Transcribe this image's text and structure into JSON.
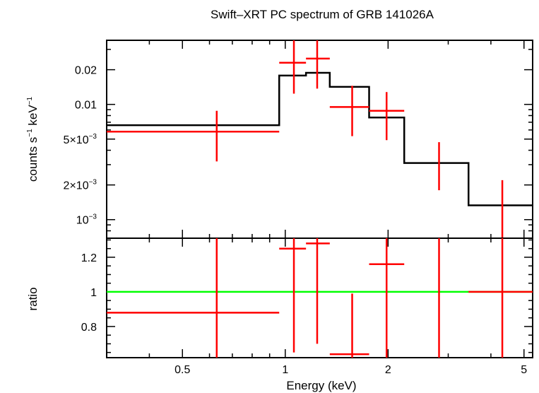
{
  "colors": {
    "model": "#000000",
    "data": "#ff0000",
    "unity": "#00ff00"
  },
  "chart_data": [
    {
      "type": "line",
      "title": "Swift–XRT PC spectrum of GRB 141026A",
      "xlabel": "Energy (keV)",
      "ylabel": "counts s⁻¹ keV⁻¹",
      "xscale": "log",
      "yscale": "log",
      "xlim": [
        0.3,
        5.3
      ],
      "ylim": [
        0.00069,
        0.036
      ],
      "yticks": [
        {
          "v": 0.001,
          "mant": "10",
          "exp": "−3"
        },
        {
          "v": 0.002,
          "mant": "2×10",
          "exp": "−3"
        },
        {
          "v": 0.005,
          "mant": "5×10",
          "exp": "−3"
        },
        {
          "v": 0.01,
          "text": "0.01"
        },
        {
          "v": 0.02,
          "text": "0.02"
        }
      ],
      "data": [
        {
          "x": 0.63,
          "xlo": 0.3,
          "xhi": 0.96,
          "y": 0.0058,
          "ylo": 0.0032,
          "yhi": 0.0088
        },
        {
          "x": 1.06,
          "xlo": 0.96,
          "xhi": 1.15,
          "y": 0.023,
          "ylo": 0.0124,
          "yhi": 0.036
        },
        {
          "x": 1.24,
          "xlo": 1.15,
          "xhi": 1.35,
          "y": 0.025,
          "ylo": 0.0137,
          "yhi": 0.036
        },
        {
          "x": 1.57,
          "xlo": 1.35,
          "xhi": 1.76,
          "y": 0.0095,
          "ylo": 0.0053,
          "yhi": 0.0145
        },
        {
          "x": 1.98,
          "xlo": 1.76,
          "xhi": 2.23,
          "y": 0.0088,
          "ylo": 0.0049,
          "yhi": 0.0128
        },
        {
          "x": 2.82,
          "xlo": 2.82,
          "xhi": 2.82,
          "y": 0.0031,
          "ylo": 0.0018,
          "yhi": 0.0047
        },
        {
          "x": 4.32,
          "xlo": 4.32,
          "xhi": 4.32,
          "y": 0.0009,
          "ylo": 0.00069,
          "yhi": 0.0022
        }
      ],
      "model": [
        {
          "xlo": 0.3,
          "xhi": 0.96,
          "y": 0.0066
        },
        {
          "xlo": 0.96,
          "xhi": 1.15,
          "y": 0.0178
        },
        {
          "xlo": 1.15,
          "xhi": 1.35,
          "y": 0.0188
        },
        {
          "xlo": 1.35,
          "xhi": 1.76,
          "y": 0.0142
        },
        {
          "xlo": 1.76,
          "xhi": 2.23,
          "y": 0.0077
        },
        {
          "xlo": 2.23,
          "xhi": 3.44,
          "y": 0.0031
        },
        {
          "xlo": 3.44,
          "xhi": 5.3,
          "y": 0.00133
        }
      ]
    },
    {
      "type": "line",
      "xlabel": "Energy (keV)",
      "ylabel": "ratio",
      "xscale": "log",
      "xlim": [
        0.3,
        5.3
      ],
      "ylim": [
        0.62,
        1.31
      ],
      "yticks": [
        0.8,
        1,
        1.2
      ],
      "xticks": [
        {
          "v": 0.5,
          "text": "0.5"
        },
        {
          "v": 1,
          "text": "1"
        },
        {
          "v": 2,
          "text": "2"
        },
        {
          "v": 5,
          "text": "5"
        }
      ],
      "reference_line": 1,
      "data": [
        {
          "x": 0.63,
          "xlo": 0.3,
          "xhi": 0.96,
          "y": 0.88,
          "ylo": 0.62,
          "yhi": 1.31
        },
        {
          "x": 1.06,
          "xlo": 0.96,
          "xhi": 1.15,
          "y": 1.25,
          "ylo": 0.65,
          "yhi": 1.31
        },
        {
          "x": 1.24,
          "xlo": 1.15,
          "xhi": 1.35,
          "y": 1.28,
          "ylo": 0.7,
          "yhi": 1.31
        },
        {
          "x": 1.57,
          "xlo": 1.35,
          "xhi": 1.76,
          "y": 0.64,
          "ylo": 0.62,
          "yhi": 0.99
        },
        {
          "x": 1.98,
          "xlo": 1.76,
          "xhi": 2.23,
          "y": 1.16,
          "ylo": 0.62,
          "yhi": 1.31
        },
        {
          "x": 2.82,
          "xlo": 2.82,
          "xhi": 2.82,
          "y": 1.0,
          "ylo": 0.62,
          "yhi": 1.31
        },
        {
          "x": 4.32,
          "xlo": 3.44,
          "xhi": 5.3,
          "y": 1.0,
          "ylo": 0.62,
          "yhi": 1.31
        }
      ]
    }
  ]
}
